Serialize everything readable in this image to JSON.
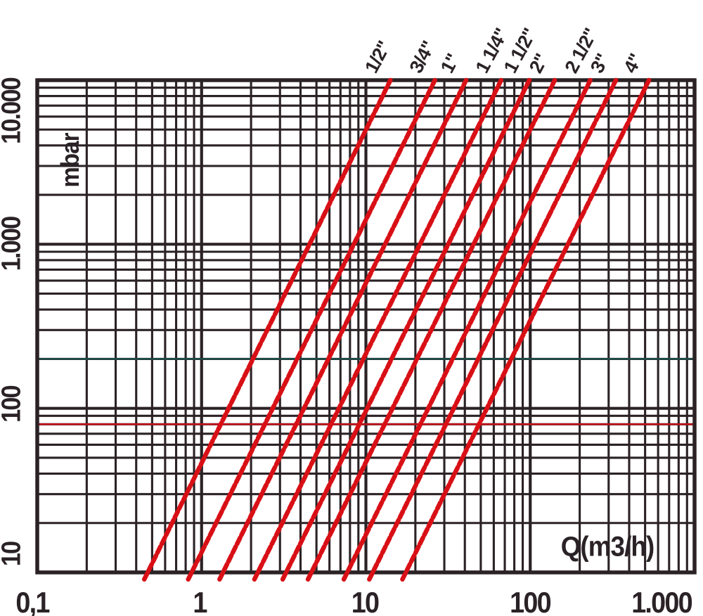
{
  "y_axis": {
    "unit_label": "mbar",
    "ticks": [
      "10",
      "100",
      "1.000",
      "10.000"
    ]
  },
  "x_axis": {
    "label": "Q(m3/h)",
    "ticks": [
      "0,1",
      "1",
      "10",
      "100",
      "1.000"
    ]
  },
  "colors": {
    "grid": "#2b2226",
    "text": "#2a2226",
    "series_line": "#d81016",
    "reference_red": "#c41118",
    "reference_teal": "#1d4d49",
    "background": "#ffffff"
  },
  "chart_data": {
    "type": "line",
    "scale": "log-log",
    "xlabel": "Q(m3/h)",
    "ylabel": "mbar",
    "x_range": [
      0.1,
      1000
    ],
    "y_range": [
      10,
      10000
    ],
    "x_ticks": [
      "0,1",
      "1",
      "10",
      "100",
      "1.000"
    ],
    "y_ticks": [
      "10",
      "100",
      "1.000",
      "10.000"
    ],
    "grid": "logarithmic major and minor gridlines, both axes",
    "legend_position": "labels rotated above top of each curve",
    "series": [
      {
        "name": "1/2\"",
        "points": [
          {
            "q": 0.47,
            "dp": 10
          },
          {
            "q": 14.1,
            "dp": 10000
          }
        ]
      },
      {
        "name": "3/4\"",
        "points": [
          {
            "q": 0.87,
            "dp": 10
          },
          {
            "q": 26.3,
            "dp": 10000
          }
        ]
      },
      {
        "name": "1\"",
        "points": [
          {
            "q": 1.35,
            "dp": 10
          },
          {
            "q": 40.7,
            "dp": 10000
          }
        ]
      },
      {
        "name": "1 1/4\"",
        "points": [
          {
            "q": 2.2,
            "dp": 10
          },
          {
            "q": 66.5,
            "dp": 10000
          }
        ]
      },
      {
        "name": "1 1/2\"",
        "points": [
          {
            "q": 3.27,
            "dp": 10
          },
          {
            "q": 98.7,
            "dp": 10000
          }
        ]
      },
      {
        "name": "2\"",
        "points": [
          {
            "q": 4.66,
            "dp": 10
          },
          {
            "q": 141,
            "dp": 10000
          }
        ]
      },
      {
        "name": "2 1/2\"",
        "points": [
          {
            "q": 7.7,
            "dp": 10
          },
          {
            "q": 232,
            "dp": 10000
          }
        ]
      },
      {
        "name": "3\"",
        "points": [
          {
            "q": 11.0,
            "dp": 10
          },
          {
            "q": 332,
            "dp": 10000
          }
        ]
      },
      {
        "name": "4\"",
        "points": [
          {
            "q": 17.5,
            "dp": 10
          },
          {
            "q": 528,
            "dp": 10000
          }
        ]
      }
    ],
    "reference_lines": [
      {
        "axis": "y",
        "value": 80,
        "color": "#c41118"
      },
      {
        "axis": "y",
        "value": 200,
        "color": "#1d4d49"
      }
    ]
  }
}
